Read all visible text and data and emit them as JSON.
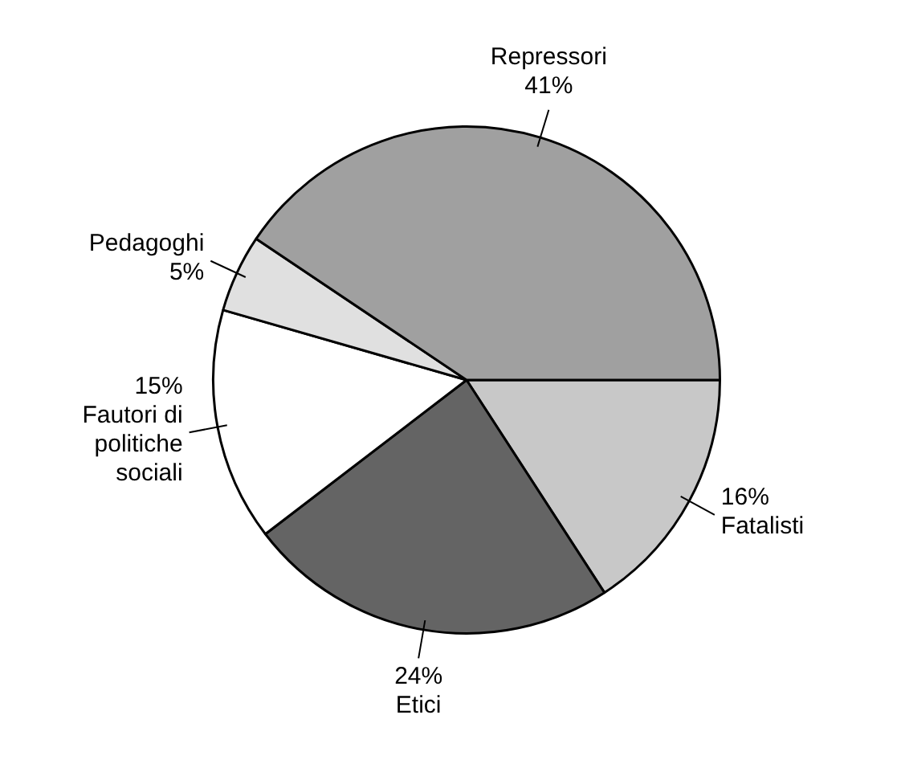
{
  "chart_data": {
    "type": "pie",
    "categories": [
      "Fatalisti",
      "Etici",
      "Fautori di politiche sociali",
      "Pedagoghi",
      "Repressori"
    ],
    "values": [
      16,
      24,
      15,
      5,
      41
    ],
    "value_labels": [
      "16%",
      "24%",
      "15%",
      "5%",
      "41%"
    ],
    "colors": [
      "#c8c8c8",
      "#646464",
      "#ffffff",
      "#e0e0e0",
      "#a0a0a0"
    ],
    "legend": false
  }
}
